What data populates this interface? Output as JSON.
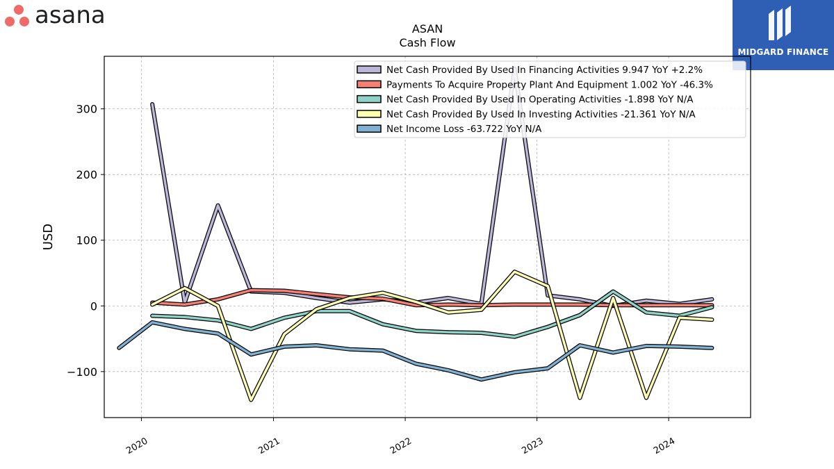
{
  "logos": {
    "left": {
      "name": "asana",
      "dot_color": "#f06a6a",
      "text_color": "#1e1f21"
    },
    "right": {
      "name": "MIDGARD FINANCE",
      "bg_color": "#2f5fb5"
    }
  },
  "chart_data": {
    "type": "line",
    "title": "ASAN",
    "subtitle": "Cash Flow",
    "xlabel": "",
    "ylabel": "USD",
    "ylim": [
      -170,
      380
    ],
    "yticks": [
      -100,
      0,
      100,
      200,
      300
    ],
    "ytick_labels": [
      "−100",
      "0",
      "100",
      "200",
      "300"
    ],
    "xlim": [
      "2019-09-20",
      "2024-08-15"
    ],
    "xticks": [
      "2020-01-01",
      "2021-01-01",
      "2022-01-01",
      "2023-01-01",
      "2024-01-01"
    ],
    "xtick_labels": [
      "2020",
      "2021",
      "2022",
      "2023",
      "2024"
    ],
    "grid": true,
    "legend_position": "top-right",
    "series": [
      {
        "name": "Net Cash Provided By Used In Financing Activities  9.947 YoY +2.2%",
        "color": "#bcb6d8",
        "points": [
          [
            "2020-01-31",
            307
          ],
          [
            "2020-04-30",
            5
          ],
          [
            "2020-07-31",
            153
          ],
          [
            "2020-10-31",
            22
          ],
          [
            "2021-01-31",
            20
          ],
          [
            "2021-04-30",
            12
          ],
          [
            "2021-07-31",
            5
          ],
          [
            "2021-10-31",
            10
          ],
          [
            "2022-01-31",
            5
          ],
          [
            "2022-04-30",
            12
          ],
          [
            "2022-07-31",
            3
          ],
          [
            "2022-10-31",
            361
          ],
          [
            "2023-01-31",
            16
          ],
          [
            "2023-04-30",
            10
          ],
          [
            "2023-07-31",
            0
          ],
          [
            "2023-10-31",
            8
          ],
          [
            "2024-01-31",
            3
          ],
          [
            "2024-04-30",
            10
          ]
        ]
      },
      {
        "name": "Payments To Acquire Property Plant And Equipment  1.002 YoY -46.3%",
        "color": "#f47f72",
        "points": [
          [
            "2020-01-31",
            5
          ],
          [
            "2020-04-30",
            2
          ],
          [
            "2020-07-31",
            10
          ],
          [
            "2020-10-31",
            24
          ],
          [
            "2021-01-31",
            23
          ],
          [
            "2021-04-30",
            18
          ],
          [
            "2021-07-31",
            13
          ],
          [
            "2021-10-31",
            11
          ],
          [
            "2022-01-31",
            1
          ],
          [
            "2022-04-30",
            2
          ],
          [
            "2022-07-31",
            1
          ],
          [
            "2022-10-31",
            2
          ],
          [
            "2023-01-31",
            2
          ],
          [
            "2023-04-30",
            2
          ],
          [
            "2023-07-31",
            1
          ],
          [
            "2023-10-31",
            1
          ],
          [
            "2024-01-31",
            1
          ],
          [
            "2024-04-30",
            1
          ]
        ]
      },
      {
        "name": "Net Cash Provided By Used In Operating Activities  -1.898 YoY N/A",
        "color": "#8dd3c7",
        "points": [
          [
            "2020-01-31",
            -15
          ],
          [
            "2020-04-30",
            -17
          ],
          [
            "2020-07-31",
            -22
          ],
          [
            "2020-10-31",
            -35
          ],
          [
            "2021-01-31",
            -18
          ],
          [
            "2021-04-30",
            -8
          ],
          [
            "2021-07-31",
            -8
          ],
          [
            "2021-10-31",
            -28
          ],
          [
            "2022-01-31",
            -38
          ],
          [
            "2022-04-30",
            -40
          ],
          [
            "2022-07-31",
            -41
          ],
          [
            "2022-10-31",
            -47
          ],
          [
            "2023-01-31",
            -32
          ],
          [
            "2023-04-30",
            -14
          ],
          [
            "2023-07-31",
            22
          ],
          [
            "2023-10-31",
            -10
          ],
          [
            "2024-01-31",
            -15
          ],
          [
            "2024-04-30",
            -2
          ]
        ]
      },
      {
        "name": "Net Cash Provided By Used In Investing Activities  -21.361 YoY N/A",
        "color": "#ffffb3",
        "points": [
          [
            "2020-01-31",
            2
          ],
          [
            "2020-04-30",
            27
          ],
          [
            "2020-07-31",
            0
          ],
          [
            "2020-10-31",
            -143
          ],
          [
            "2021-01-31",
            -43
          ],
          [
            "2021-04-30",
            -5
          ],
          [
            "2021-07-31",
            12
          ],
          [
            "2021-10-31",
            20
          ],
          [
            "2022-01-31",
            6
          ],
          [
            "2022-04-30",
            -10
          ],
          [
            "2022-07-31",
            -6
          ],
          [
            "2022-10-31",
            52
          ],
          [
            "2023-01-31",
            30
          ],
          [
            "2023-04-30",
            -140
          ],
          [
            "2023-07-31",
            12
          ],
          [
            "2023-10-31",
            -140
          ],
          [
            "2024-01-31",
            -18
          ],
          [
            "2024-04-30",
            -21
          ]
        ]
      },
      {
        "name": "Net Income Loss  -63.722 YoY N/A",
        "color": "#80b1d3",
        "points": [
          [
            "2019-10-31",
            -64
          ],
          [
            "2020-01-31",
            -25
          ],
          [
            "2020-04-30",
            -35
          ],
          [
            "2020-07-31",
            -42
          ],
          [
            "2020-10-31",
            -74
          ],
          [
            "2021-01-31",
            -62
          ],
          [
            "2021-04-30",
            -60
          ],
          [
            "2021-07-31",
            -66
          ],
          [
            "2021-10-31",
            -68
          ],
          [
            "2022-01-31",
            -88
          ],
          [
            "2022-04-30",
            -98
          ],
          [
            "2022-07-31",
            -112
          ],
          [
            "2022-10-31",
            -101
          ],
          [
            "2023-01-31",
            -95
          ],
          [
            "2023-04-30",
            -60
          ],
          [
            "2023-07-31",
            -71
          ],
          [
            "2023-10-31",
            -61
          ],
          [
            "2024-01-31",
            -62
          ],
          [
            "2024-04-30",
            -64
          ]
        ]
      }
    ]
  }
}
